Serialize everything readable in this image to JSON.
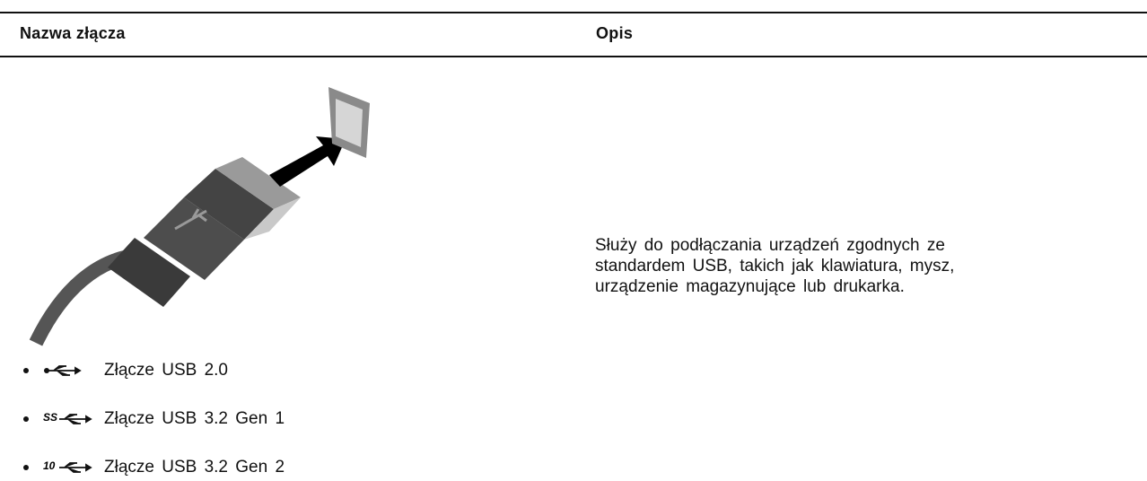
{
  "table": {
    "headers": [
      "Nazwa złącza",
      "Opis"
    ],
    "rows": [
      {
        "connectors": [
          {
            "icon_label": null,
            "name": "Złącze USB 2.0"
          },
          {
            "icon_label": "SS",
            "name": "Złącze USB 3.2 Gen 1"
          },
          {
            "icon_label": "10",
            "name": "Złącze USB 3.2 Gen 2"
          }
        ],
        "description": [
          "Służy do podłączania urządzeń zgodnych ze",
          "standardem USB, takich jak klawiatura, mysz,",
          "urządzenie magazynujące lub drukarka."
        ]
      }
    ]
  }
}
